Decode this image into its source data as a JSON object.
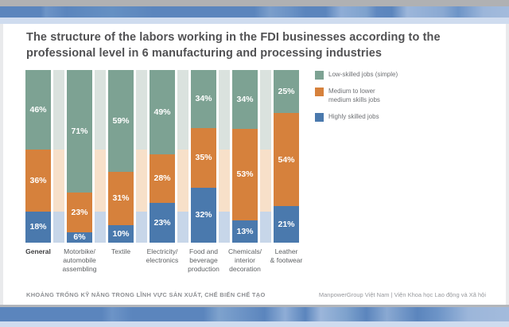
{
  "slide": {
    "title": "The structure of the labors working in the FDI businesses according to the professional level in 6 manufacturing and processing industries"
  },
  "colors": {
    "low_skilled_green": "#7DA293",
    "medium_skilled_orange": "#D6813C",
    "highly_skilled_blue": "#4A79AD",
    "faded_green": "#DAE2DE",
    "faded_orange": "#F7E0C9",
    "faded_blue": "#C7D6E9",
    "banner_blue": "#5B85BD",
    "banner_light_blue": "#CFDCEF",
    "banner_gray": "#B0B1B3"
  },
  "chart_data": {
    "type": "bar",
    "stacked": true,
    "orientation": "vertical",
    "value_format": "percent",
    "ylim": [
      0,
      100
    ],
    "grid": false,
    "legend_position": "right",
    "title": "The structure of the labors working in the FDI businesses according to the professional level in 6 manufacturing and processing industries",
    "categories": [
      "General",
      "Motorbike/ automobile assembling",
      "Textile",
      "Electricity/ electronics",
      "Food and beverage production",
      "Chemicals/ interior decoration",
      "Leather & footwear"
    ],
    "category_label_lines": [
      [
        "General"
      ],
      [
        "Motorbike/",
        "automobile",
        "assembling"
      ],
      [
        "Textile"
      ],
      [
        "Electricity/",
        "electronics"
      ],
      [
        "Food and",
        "beverage",
        "production"
      ],
      [
        "Chemicals/",
        "interior",
        "decoration"
      ],
      [
        "Leather",
        "& footwear"
      ]
    ],
    "series": [
      {
        "name": "Low-skilled jobs (simple)",
        "color": "#7DA293",
        "values": [
          46,
          71,
          59,
          49,
          34,
          34,
          25
        ]
      },
      {
        "name": "Medium to lower medium skills jobs",
        "color": "#D6813C",
        "values": [
          36,
          23,
          31,
          28,
          35,
          53,
          54
        ]
      },
      {
        "name": "Highly skilled jobs",
        "color": "#4A79AD",
        "values": [
          18,
          6,
          10,
          23,
          32,
          13,
          21
        ]
      }
    ],
    "separator_bars": {
      "note": "faded narrow bars between categories repeat the General distribution",
      "values": [
        46,
        36,
        18
      ],
      "colors": [
        "#DAE2DE",
        "#F7E0C9",
        "#C7D6E9"
      ]
    }
  },
  "legend": {
    "items": [
      {
        "label_lines": [
          "Low-skilled jobs (simple)"
        ],
        "color": "#7DA293"
      },
      {
        "label_lines": [
          "Medium to lower",
          "medium skills jobs"
        ],
        "color": "#D6813C"
      },
      {
        "label_lines": [
          "Highly skilled jobs"
        ],
        "color": "#4A79AD"
      }
    ]
  },
  "footer": {
    "left": "KHOẢNG TRỐNG KỸ NĂNG TRONG LĨNH VỰC SẢN XUẤT, CHẾ BIẾN CHẾ TẠO",
    "right": "ManpowerGroup Việt Nam   |   Viện Khoa học Lao động và Xã hội"
  }
}
